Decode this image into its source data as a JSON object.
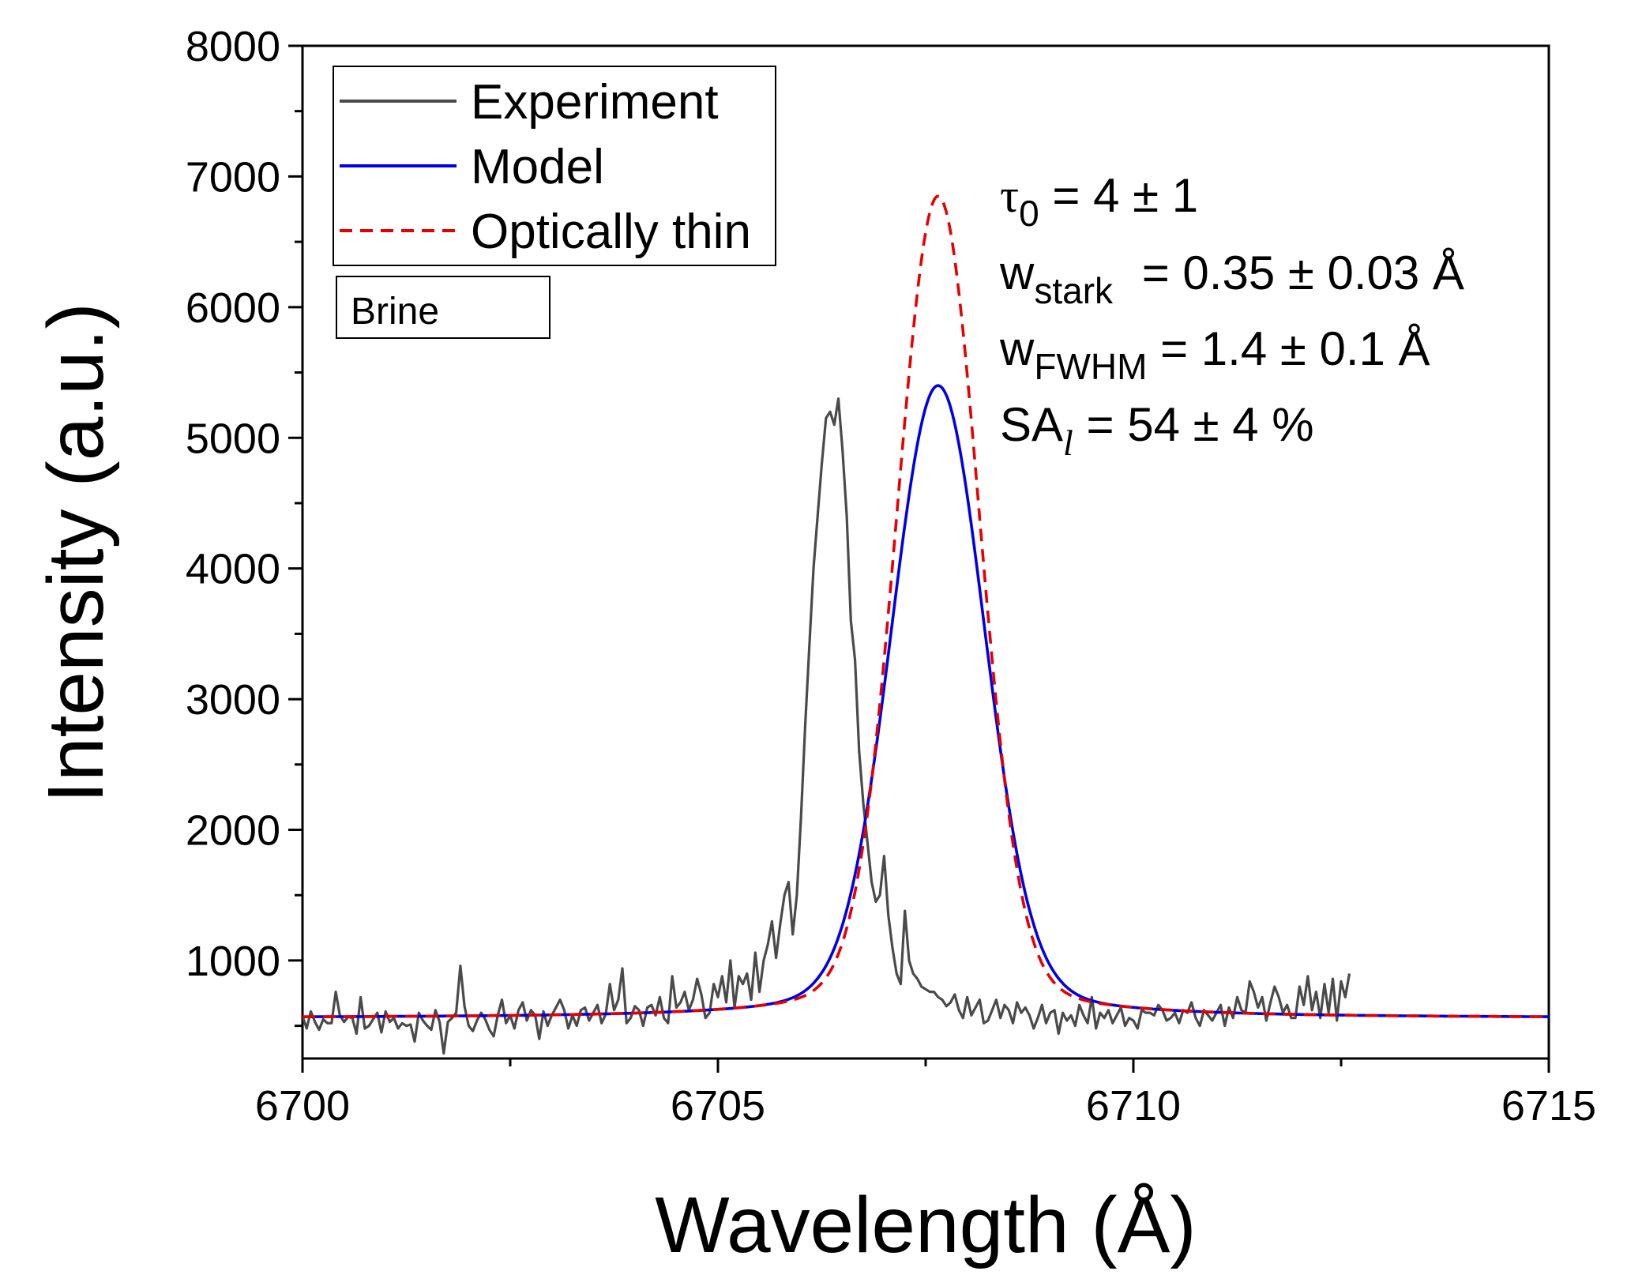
{
  "chart_data": {
    "type": "line",
    "xlabel": "Wavelength (Å)",
    "ylabel": "Intensity (a.u.)",
    "xlim": [
      6700,
      6715
    ],
    "ylim": [
      250,
      8000
    ],
    "x_ticks": [
      "6700",
      "6705",
      "6710",
      "6715"
    ],
    "y_ticks": [
      "1000",
      "2000",
      "3000",
      "4000",
      "5000",
      "6000",
      "7000",
      "8000"
    ],
    "legend": [
      {
        "name": "Experiment",
        "color": "#4a4a4a",
        "style": "solid"
      },
      {
        "name": "Model",
        "color": "#0000e6",
        "style": "solid"
      },
      {
        "name": "Optically thin",
        "color": "#e60000",
        "style": "dashed"
      }
    ],
    "box_label": "Brine",
    "annotations": {
      "tau_symbol": "τ",
      "tau_sub": "0",
      "tau_value": " = 4 ± 1",
      "wstark_main": "w",
      "wstark_sub": "stark",
      "wstark_value": " = 0.35 ± 0.03 Å",
      "wfwhm_main": "w",
      "wfwhm_sub": "FWHM",
      "wfwhm_value": " = 1.4 ± 0.1 Å",
      "sa_main": "SA",
      "sa_sub": "l",
      "sa_value": " = 54 ± 4 %"
    },
    "series": [
      {
        "name": "Model",
        "center": 6707.65,
        "peak": 5400,
        "baseline": 560,
        "gauss_fwhm": 1.3,
        "lorentz_fwhm": 0.35,
        "lorentz_weight": 0.09,
        "color": "#0000e6"
      },
      {
        "name": "Optically thin",
        "center": 6707.65,
        "peak": 6850,
        "baseline": 560,
        "gauss_fwhm": 1.15,
        "lorentz_fwhm": 0.35,
        "lorentz_weight": 0.07,
        "color": "#e60000"
      },
      {
        "name": "Experiment",
        "color": "#4a4a4a",
        "x_start": 6700,
        "x_step": 0.05,
        "values": [
          575,
          480,
          610,
          530,
          470,
          550,
          520,
          520,
          760,
          580,
          530,
          570,
          560,
          440,
          720,
          480,
          500,
          550,
          600,
          450,
          610,
          530,
          560,
          480,
          520,
          500,
          510,
          380,
          600,
          540,
          500,
          470,
          620,
          530,
          290,
          530,
          560,
          600,
          960,
          650,
          500,
          460,
          540,
          600,
          550,
          470,
          420,
          580,
          700,
          520,
          580,
          480,
          620,
          680,
          540,
          620,
          580,
          400,
          610,
          500,
          580,
          640,
          700,
          620,
          480,
          580,
          500,
          620,
          640,
          540,
          600,
          660,
          520,
          590,
          820,
          620,
          700,
          940,
          520,
          560,
          650,
          620,
          500,
          640,
          660,
          580,
          720,
          560,
          520,
          880,
          640,
          680,
          760,
          620,
          700,
          860,
          740,
          560,
          600,
          820,
          720,
          880,
          680,
          1000,
          640,
          880,
          820,
          900,
          700,
          1060,
          760,
          1000,
          1120,
          1300,
          1020,
          1280,
          1500,
          1600,
          1200,
          1500,
          2100,
          2800,
          3400,
          4000,
          4400,
          4800,
          5150,
          5200,
          5100,
          5300,
          4900,
          4400,
          3600,
          3300,
          2600,
          2200,
          1900,
          1600,
          1450,
          1500,
          1800,
          1350,
          1100,
          900,
          820,
          1380,
          1000,
          900,
          860,
          800,
          780,
          760,
          760,
          720,
          700,
          650,
          680,
          740,
          620,
          560,
          720,
          580,
          640,
          700,
          520,
          540,
          620,
          700,
          560,
          660,
          620,
          520,
          680,
          600,
          640,
          580,
          480,
          560,
          660,
          520,
          600,
          620,
          440,
          600,
          540,
          580,
          500,
          660,
          580,
          520,
          720,
          480,
          600,
          560,
          620,
          520,
          580,
          640,
          500,
          560,
          540,
          480,
          620,
          600,
          600,
          580,
          660,
          620,
          540,
          560,
          600,
          520,
          620,
          600,
          680,
          560,
          500,
          620,
          580,
          540,
          600,
          660,
          500,
          640,
          560,
          720,
          620,
          600,
          840,
          760,
          640,
          720,
          540,
          680,
          800,
          720,
          600,
          660,
          560,
          560,
          800,
          660,
          880,
          620,
          760,
          560,
          820,
          600,
          860,
          540,
          840,
          720,
          900
        ]
      }
    ]
  }
}
